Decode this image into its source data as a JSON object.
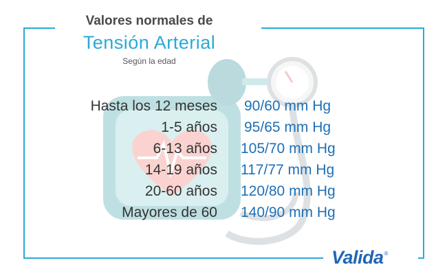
{
  "header": {
    "title_line1": "Valores normales de",
    "title_line2": "Tensión Arterial",
    "subtitle": "Según la edad"
  },
  "rows": [
    {
      "age": "Hasta los 12 meses",
      "value": "90/60 mm Hg"
    },
    {
      "age": "1-5 años",
      "value": "95/65 mm Hg"
    },
    {
      "age": "6-13 años",
      "value": "105/70 mm Hg"
    },
    {
      "age": "14-19 años",
      "value": "117/77 mm Hg"
    },
    {
      "age": "20-60 años",
      "value": "120/80 mm Hg"
    },
    {
      "age": "Mayores de 60",
      "value": "140/90 mm Hg"
    }
  ],
  "brand": {
    "name": "Valida",
    "registered_mark": "®"
  },
  "colors": {
    "accent": "#2aa9d6",
    "value_text": "#1e6fb5",
    "label_text": "#333333",
    "brand": "#1f66b7"
  },
  "background_illustration": "sphygmomanometer-icon"
}
